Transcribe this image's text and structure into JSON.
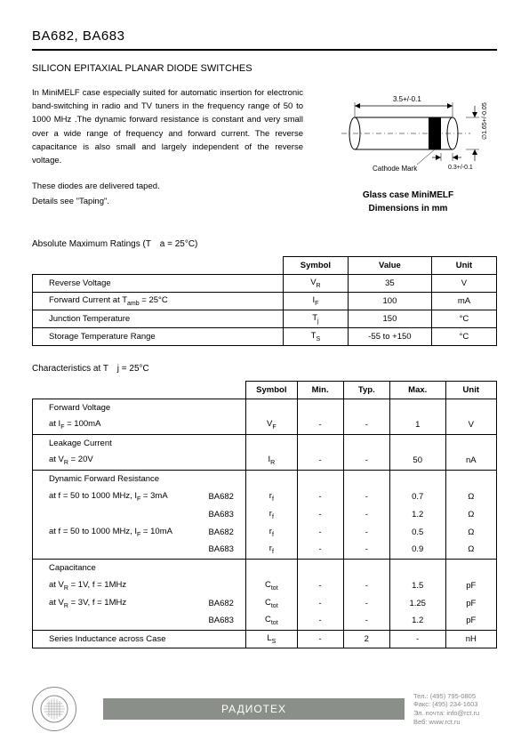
{
  "header": {
    "title": "BA682, BA683"
  },
  "subtitle": "SILICON EPITAXIAL PLANAR DIODE SWITCHES",
  "description": "In MiniMELF case especially suited for automatic insertion for electronic band-switching in radio and TV tuners in the frequency range of 50 to 1000 MHz .The dynamic forward resistance is constant and very small over a wide range of frequency and forward current. The reverse capacitance is also small and largely independent of the reverse voltage.",
  "note1": "These diodes are delivered taped.",
  "note2": "Details see \"Taping\".",
  "diagram": {
    "top_dim": "3.5+/-0.1",
    "right_dim": "∅1.65+/-0.05",
    "bottom_dim": "0.3+/-0.1",
    "cathode_label": "Cathode Mark",
    "caption1": "Glass case MiniMELF",
    "caption2": "Dimensions in mm",
    "colors": {
      "stroke": "#000000",
      "body_fill": "#ffffff",
      "band_fill": "#000000"
    }
  },
  "abs_max": {
    "title": "Absolute Maximum Ratings (T　a = 25°C)",
    "headers": [
      "",
      "Symbol",
      "Value",
      "Unit"
    ],
    "rows": [
      {
        "param": "Reverse Voltage",
        "param_html": "Reverse Voltage",
        "symbol": "V<sub>R</sub>",
        "value": "35",
        "unit": "V"
      },
      {
        "param": "Forward Current at Tamb = 25°C",
        "param_html": "Forward Current at T<sub>amb</sub> = 25°C",
        "symbol": "I<sub>F</sub>",
        "value": "100",
        "unit": "mA"
      },
      {
        "param": "Junction Temperature",
        "param_html": "Junction Temperature",
        "symbol": "T<sub>j</sub>",
        "value": "150",
        "unit": "°C"
      },
      {
        "param": "Storage Temperature Range",
        "param_html": "Storage Temperature Range",
        "symbol": "T<sub>S</sub>",
        "value": "-55 to +150",
        "unit": "°C"
      }
    ]
  },
  "char": {
    "title": "Characteristics at T　j = 25°C",
    "headers": [
      "",
      "Symbol",
      "Min.",
      "Typ.",
      "Max.",
      "Unit"
    ],
    "groups": [
      {
        "label": "Forward Voltage",
        "rows": [
          {
            "cond": "at I<sub>F</sub> = 100mA",
            "part": "",
            "symbol": "V<sub>F</sub>",
            "min": "-",
            "typ": "-",
            "max": "1",
            "unit": "V"
          }
        ]
      },
      {
        "label": "Leakage Current",
        "rows": [
          {
            "cond": "at V<sub>R</sub> = 20V",
            "part": "",
            "symbol": "I<sub>R</sub>",
            "min": "-",
            "typ": "-",
            "max": "50",
            "unit": "nA"
          }
        ]
      },
      {
        "label": "Dynamic Forward Resistance",
        "rows": [
          {
            "cond": "at f = 50 to 1000 MHz, I<sub>F</sub> = 3mA",
            "part": "BA682",
            "symbol": "r<sub>f</sub>",
            "min": "-",
            "typ": "-",
            "max": "0.7",
            "unit": "Ω"
          },
          {
            "cond": "",
            "part": "BA683",
            "symbol": "r<sub>f</sub>",
            "min": "-",
            "typ": "-",
            "max": "1.2",
            "unit": "Ω"
          },
          {
            "cond": "at f = 50 to 1000 MHz, I<sub>F</sub> = 10mA",
            "part": "BA682",
            "symbol": "r<sub>f</sub>",
            "min": "-",
            "typ": "-",
            "max": "0.5",
            "unit": "Ω"
          },
          {
            "cond": "",
            "part": "BA683",
            "symbol": "r<sub>f</sub>",
            "min": "-",
            "typ": "-",
            "max": "0.9",
            "unit": "Ω"
          }
        ]
      },
      {
        "label": "Capacitance",
        "rows": [
          {
            "cond": "at V<sub>R</sub> = 1V, f = 1MHz",
            "part": "",
            "symbol": "C<sub>tot</sub>",
            "min": "-",
            "typ": "-",
            "max": "1.5",
            "unit": "pF"
          },
          {
            "cond": "at V<sub>R</sub> = 3V, f = 1MHz",
            "part": "BA682",
            "symbol": "C<sub>tot</sub>",
            "min": "-",
            "typ": "-",
            "max": "1.25",
            "unit": "pF"
          },
          {
            "cond": "",
            "part": "BA683",
            "symbol": "C<sub>tot</sub>",
            "min": "-",
            "typ": "-",
            "max": "1.2",
            "unit": "pF"
          }
        ]
      },
      {
        "label": "Series Inductance across Case",
        "single": true,
        "rows": [
          {
            "cond": "Series Inductance across Case",
            "part": "",
            "symbol": "L<sub>S</sub>",
            "min": "-",
            "typ": "2",
            "max": "-",
            "unit": "nH"
          }
        ]
      }
    ]
  },
  "footer": {
    "brand": "РАДИОТЕХ",
    "contact": {
      "tel": "Тел.: (495) 795-0805",
      "fax": "Факс: (495) 234-1603",
      "email": "Эл. почта: info@rct.ru",
      "web": "Веб: www.rct.ru"
    },
    "bar_color": "#8a8f8a"
  }
}
